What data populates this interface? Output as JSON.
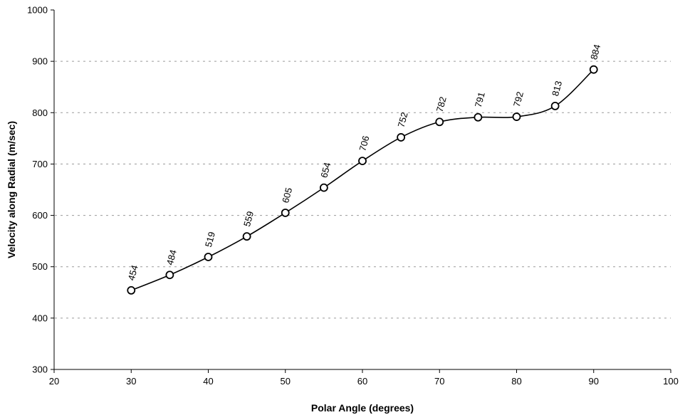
{
  "chart_data": {
    "type": "line",
    "xlabel": "Polar Angle (degrees)",
    "ylabel": "Velocity along Radial (m/sec)",
    "xlim": [
      20,
      100
    ],
    "ylim": [
      300,
      1000
    ],
    "xticks": [
      20,
      30,
      40,
      50,
      60,
      70,
      80,
      90,
      100
    ],
    "yticks": [
      300,
      400,
      500,
      600,
      700,
      800,
      900,
      1000
    ],
    "grid": "horizontal-dashed",
    "legend": "none",
    "smooth": true,
    "marker": "open-circle",
    "line_color": "#000000",
    "x": [
      30,
      35,
      40,
      45,
      50,
      55,
      60,
      65,
      70,
      75,
      80,
      85,
      90
    ],
    "series": [
      {
        "values": [
          454,
          484,
          519,
          559,
          605,
          654,
          706,
          752,
          782,
          791,
          792,
          813,
          884
        ],
        "data_labels": [
          "454",
          "484",
          "519",
          "559",
          "605",
          "654",
          "706",
          "752",
          "782",
          "791",
          "792",
          "813",
          "884"
        ]
      }
    ]
  }
}
